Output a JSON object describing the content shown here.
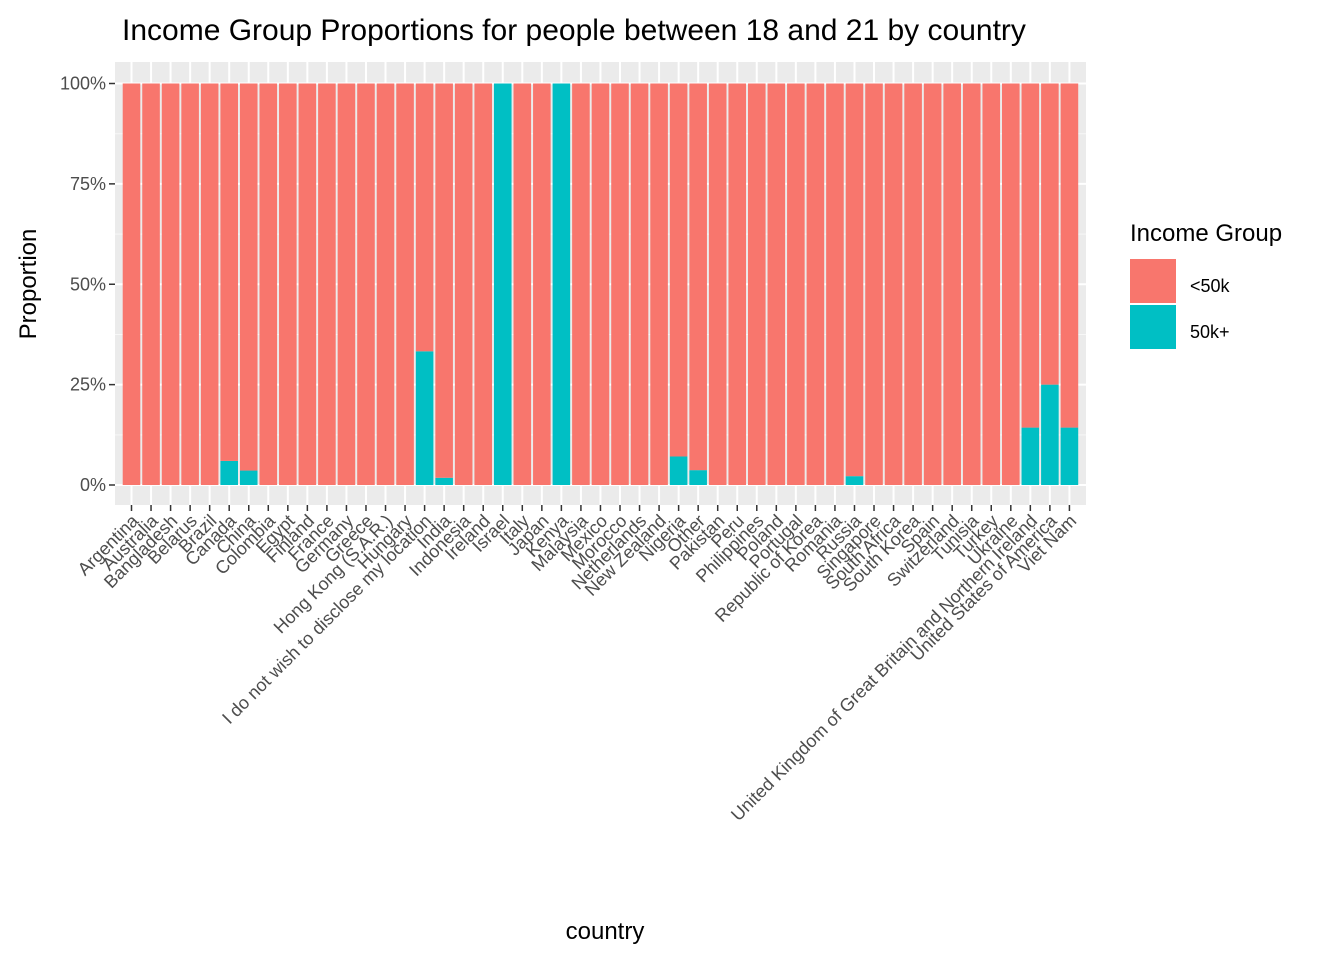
{
  "chart_data": {
    "type": "bar",
    "stacked": true,
    "title": "Income Group Proportions for people between 18 and 21 by country",
    "xlabel": "country",
    "ylabel": "Proportion",
    "ylim": [
      0,
      1
    ],
    "yticks": [
      "0%",
      "25%",
      "50%",
      "75%",
      "100%"
    ],
    "ytick_values": [
      0,
      0.25,
      0.5,
      0.75,
      1
    ],
    "grid": true,
    "legend": {
      "title": "Income Group",
      "position": "right",
      "entries": [
        {
          "name": "<50k",
          "color": "#F8766D"
        },
        {
          "name": "50k+",
          "color": "#00BFC4"
        }
      ]
    },
    "categories": [
      "Argentina",
      "Australia",
      "Bangladesh",
      "Belarus",
      "Brazil",
      "Canada",
      "China",
      "Colombia",
      "Egypt",
      "Finland",
      "France",
      "Germany",
      "Greece",
      "Hong Kong (S.A.R.)",
      "Hungary",
      "I do not wish to disclose my location",
      "India",
      "Indonesia",
      "Ireland",
      "Israel",
      "Italy",
      "Japan",
      "Kenya",
      "Malaysia",
      "Mexico",
      "Morocco",
      "Netherlands",
      "New Zealand",
      "Nigeria",
      "Other",
      "Pakistan",
      "Peru",
      "Philippines",
      "Poland",
      "Portugal",
      "Republic of Korea",
      "Romania",
      "Russia",
      "Singapore",
      "South Africa",
      "South Korea",
      "Spain",
      "Switzerland",
      "Tunisia",
      "Turkey",
      "Ukraine",
      "United Kingdom of Great Britain and Northern Ireland",
      "United States of America",
      "Viet Nam"
    ],
    "series": [
      {
        "name": "<50k",
        "color": "#F8766D",
        "values": [
          1,
          1,
          1,
          1,
          1,
          0.94,
          0.964,
          1,
          1,
          1,
          1,
          1,
          1,
          1,
          1,
          0.667,
          0.982,
          1,
          1,
          0,
          1,
          1,
          0,
          1,
          1,
          1,
          1,
          1,
          0.929,
          0.963,
          1,
          1,
          1,
          1,
          1,
          1,
          1,
          0.978,
          1,
          1,
          1,
          1,
          1,
          1,
          1,
          1,
          0.857,
          0.75,
          0.857
        ]
      },
      {
        "name": "50k+",
        "color": "#00BFC4",
        "values": [
          0,
          0,
          0,
          0,
          0,
          0.06,
          0.036,
          0,
          0,
          0,
          0,
          0,
          0,
          0,
          0,
          0.333,
          0.018,
          0,
          0,
          1,
          0,
          0,
          1,
          0,
          0,
          0,
          0,
          0,
          0.071,
          0.037,
          0,
          0,
          0,
          0,
          0,
          0,
          0,
          0.022,
          0,
          0,
          0,
          0,
          0,
          0,
          0,
          0,
          0.143,
          0.25,
          0.143
        ]
      }
    ]
  }
}
